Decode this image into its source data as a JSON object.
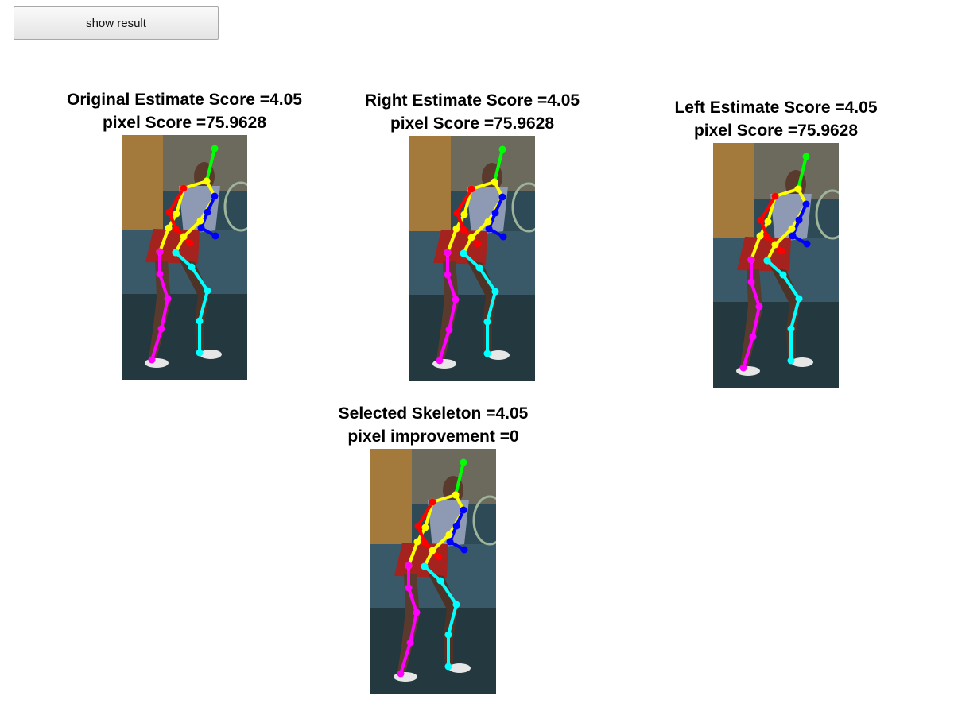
{
  "toolbar": {
    "show_result_label": "show result"
  },
  "panels": {
    "original": {
      "line1": "Original Estimate Score =4.05",
      "line2": "pixel Score =75.9628"
    },
    "right": {
      "line1": "Right Estimate Score =4.05",
      "line2": "pixel Score =75.9628"
    },
    "left": {
      "line1": "Left Estimate Score =4.05",
      "line2": "pixel Score =75.9628"
    },
    "selected": {
      "line1": "Selected Skeleton =4.05",
      "line2": "pixel improvement =0"
    }
  },
  "skeleton_colors": {
    "head": "#00ff00",
    "torso": "#ffff00",
    "right_arm": "#ff0000",
    "left_arm": "#0000ff",
    "right_leg": "#ff00ff",
    "left_leg": "#00ffff"
  }
}
